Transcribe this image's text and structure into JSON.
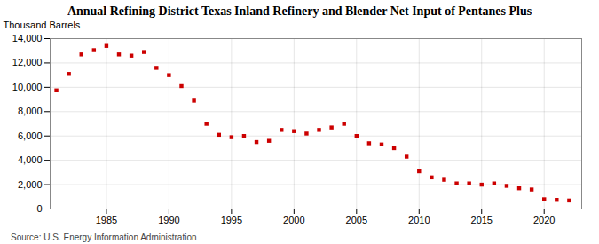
{
  "chart_data": {
    "type": "scatter",
    "title": "Annual Refining District Texas Inland Refinery and Blender Net Input of Pentanes Plus",
    "ylabel": "Thousand Barrels",
    "source": "Source: U.S. Energy Information Administration",
    "x": [
      1981,
      1982,
      1983,
      1984,
      1985,
      1986,
      1987,
      1988,
      1989,
      1990,
      1991,
      1992,
      1993,
      1994,
      1995,
      1996,
      1997,
      1998,
      1999,
      2000,
      2001,
      2002,
      2003,
      2004,
      2005,
      2006,
      2007,
      2008,
      2009,
      2010,
      2011,
      2012,
      2013,
      2014,
      2015,
      2016,
      2017,
      2018,
      2019,
      2020,
      2021,
      2022
    ],
    "values": [
      9750,
      11100,
      12700,
      13050,
      13400,
      12700,
      12600,
      12900,
      11600,
      11000,
      10100,
      8900,
      7000,
      6100,
      5900,
      6000,
      5500,
      5600,
      6500,
      6400,
      6200,
      6500,
      6700,
      7000,
      6000,
      5400,
      5300,
      5000,
      4300,
      3100,
      2600,
      2400,
      2100,
      2100,
      2000,
      2100,
      1900,
      1700,
      1600,
      800,
      750,
      700
    ],
    "color": "#cc0000",
    "marker": "square",
    "xlim": [
      1980.5,
      2023
    ],
    "xticks": [
      1985,
      1990,
      1995,
      2000,
      2005,
      2010,
      2015,
      2020
    ],
    "ylim": [
      0,
      14000
    ],
    "yticks": [
      0,
      {
        "value": 2000,
        "label": "2,000"
      },
      {
        "value": 4000,
        "label": "4,000"
      },
      {
        "value": 6000,
        "label": "6,000"
      },
      {
        "value": 8000,
        "label": "8,000"
      },
      {
        "value": 10000,
        "label": "10,000"
      },
      {
        "value": 12000,
        "label": "12,000"
      },
      {
        "value": 14000,
        "label": "14,000"
      }
    ],
    "grid": true
  }
}
